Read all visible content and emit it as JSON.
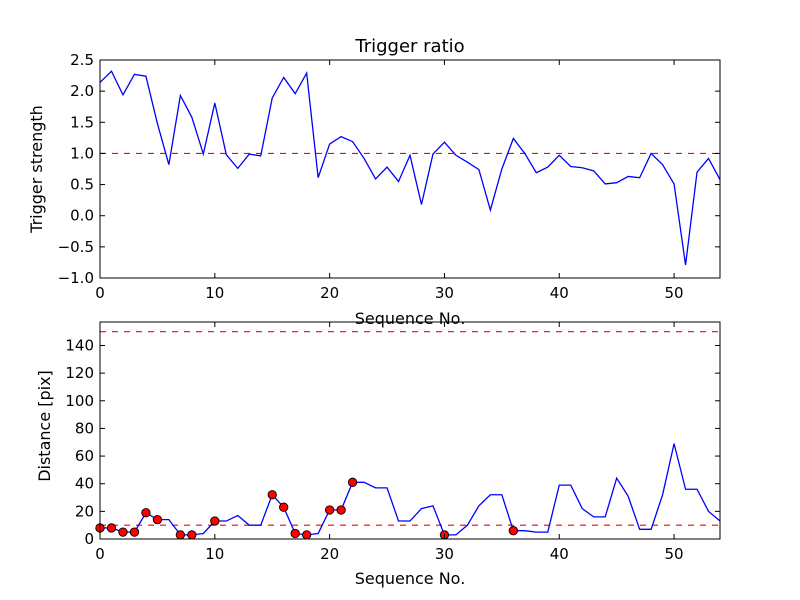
{
  "chart_data": [
    {
      "type": "line",
      "title": "Trigger ratio",
      "xlabel": "Sequence No.",
      "ylabel": "Trigger strength",
      "xlim": [
        0,
        54
      ],
      "ylim": [
        -1.0,
        2.5
      ],
      "xticks": [
        0,
        10,
        20,
        30,
        40,
        50
      ],
      "yticks": [
        -1.0,
        -0.5,
        0.0,
        0.5,
        1.0,
        1.5,
        2.0,
        2.5
      ],
      "ytick_labels": [
        "−1.0",
        "−0.5",
        "0.0",
        "0.5",
        "1.0",
        "1.5",
        "2.0",
        "2.5"
      ],
      "xtick_labels": [
        "0",
        "10",
        "20",
        "30",
        "40",
        "50"
      ],
      "series": [
        {
          "name": "trigger strength",
          "color": "#0000ff",
          "x": [
            0,
            1,
            2,
            3,
            4,
            5,
            6,
            7,
            8,
            9,
            10,
            11,
            12,
            13,
            14,
            15,
            16,
            17,
            18,
            19,
            20,
            21,
            22,
            23,
            24,
            25,
            26,
            27,
            28,
            29,
            30,
            31,
            32,
            33,
            34,
            35,
            36,
            37,
            38,
            39,
            40,
            41,
            42,
            43,
            44,
            45,
            46,
            47,
            48,
            49,
            50,
            51,
            52,
            53,
            54
          ],
          "values": [
            2.14,
            2.32,
            1.94,
            2.27,
            2.24,
            1.48,
            0.82,
            1.93,
            1.58,
            0.99,
            1.81,
            0.98,
            0.76,
            0.99,
            0.96,
            1.89,
            2.22,
            1.96,
            2.29,
            0.61,
            1.15,
            1.27,
            1.19,
            0.92,
            0.59,
            0.78,
            0.55,
            0.97,
            0.18,
            0.99,
            1.18,
            0.97,
            0.86,
            0.74,
            0.09,
            0.75,
            1.24,
            1.0,
            0.69,
            0.78,
            0.97,
            0.79,
            0.77,
            0.72,
            0.51,
            0.53,
            0.63,
            0.61,
            1.0,
            0.82,
            0.51,
            -0.79,
            0.7,
            0.92,
            0.58
          ]
        }
      ],
      "reference_lines": [
        {
          "value": 1.0,
          "color": "#ff0000",
          "style": "dashed"
        }
      ]
    },
    {
      "type": "line",
      "title": "",
      "xlabel": "Sequence No.",
      "ylabel": "Distance [pix]",
      "xlim": [
        0,
        54
      ],
      "ylim": [
        0,
        157
      ],
      "xticks": [
        0,
        10,
        20,
        30,
        40,
        50
      ],
      "yticks": [
        0,
        20,
        40,
        60,
        80,
        100,
        120,
        140
      ],
      "xtick_labels": [
        "0",
        "10",
        "20",
        "30",
        "40",
        "50"
      ],
      "ytick_labels": [
        "0",
        "20",
        "40",
        "60",
        "80",
        "100",
        "120",
        "140"
      ],
      "series": [
        {
          "name": "distance",
          "color": "#0000ff",
          "x": [
            0,
            1,
            2,
            3,
            4,
            5,
            6,
            7,
            8,
            9,
            10,
            11,
            12,
            13,
            14,
            15,
            16,
            17,
            18,
            19,
            20,
            21,
            22,
            23,
            24,
            25,
            26,
            27,
            28,
            29,
            30,
            31,
            32,
            33,
            34,
            35,
            36,
            37,
            38,
            39,
            40,
            41,
            42,
            43,
            44,
            45,
            46,
            47,
            48,
            49,
            50,
            51,
            52,
            53,
            54
          ],
          "values": [
            8,
            8,
            5,
            5,
            19,
            14,
            14,
            3,
            3,
            4,
            13,
            13,
            17,
            10,
            10,
            32,
            23,
            4,
            3,
            4,
            21,
            21,
            41,
            41,
            37,
            37,
            13,
            13,
            22,
            24,
            3,
            3,
            10,
            24,
            32,
            32,
            6,
            6,
            5,
            5,
            39,
            39,
            22,
            16,
            16,
            44,
            31,
            7,
            7,
            32,
            69,
            36,
            36,
            20,
            13
          ]
        }
      ],
      "markers": {
        "name": "triggered",
        "color": "#ff0000",
        "x": [
          0,
          1,
          2,
          3,
          4,
          5,
          7,
          8,
          10,
          15,
          16,
          17,
          18,
          20,
          21,
          22,
          30,
          36
        ],
        "values": [
          8,
          8,
          5,
          5,
          19,
          14,
          3,
          3,
          13,
          32,
          23,
          4,
          3,
          21,
          21,
          41,
          3,
          6
        ]
      },
      "reference_lines": [
        {
          "value": 150,
          "color": "#ff0000",
          "style": "dashed"
        },
        {
          "value": 10,
          "color": "#ff0000",
          "style": "dashed"
        }
      ]
    }
  ]
}
